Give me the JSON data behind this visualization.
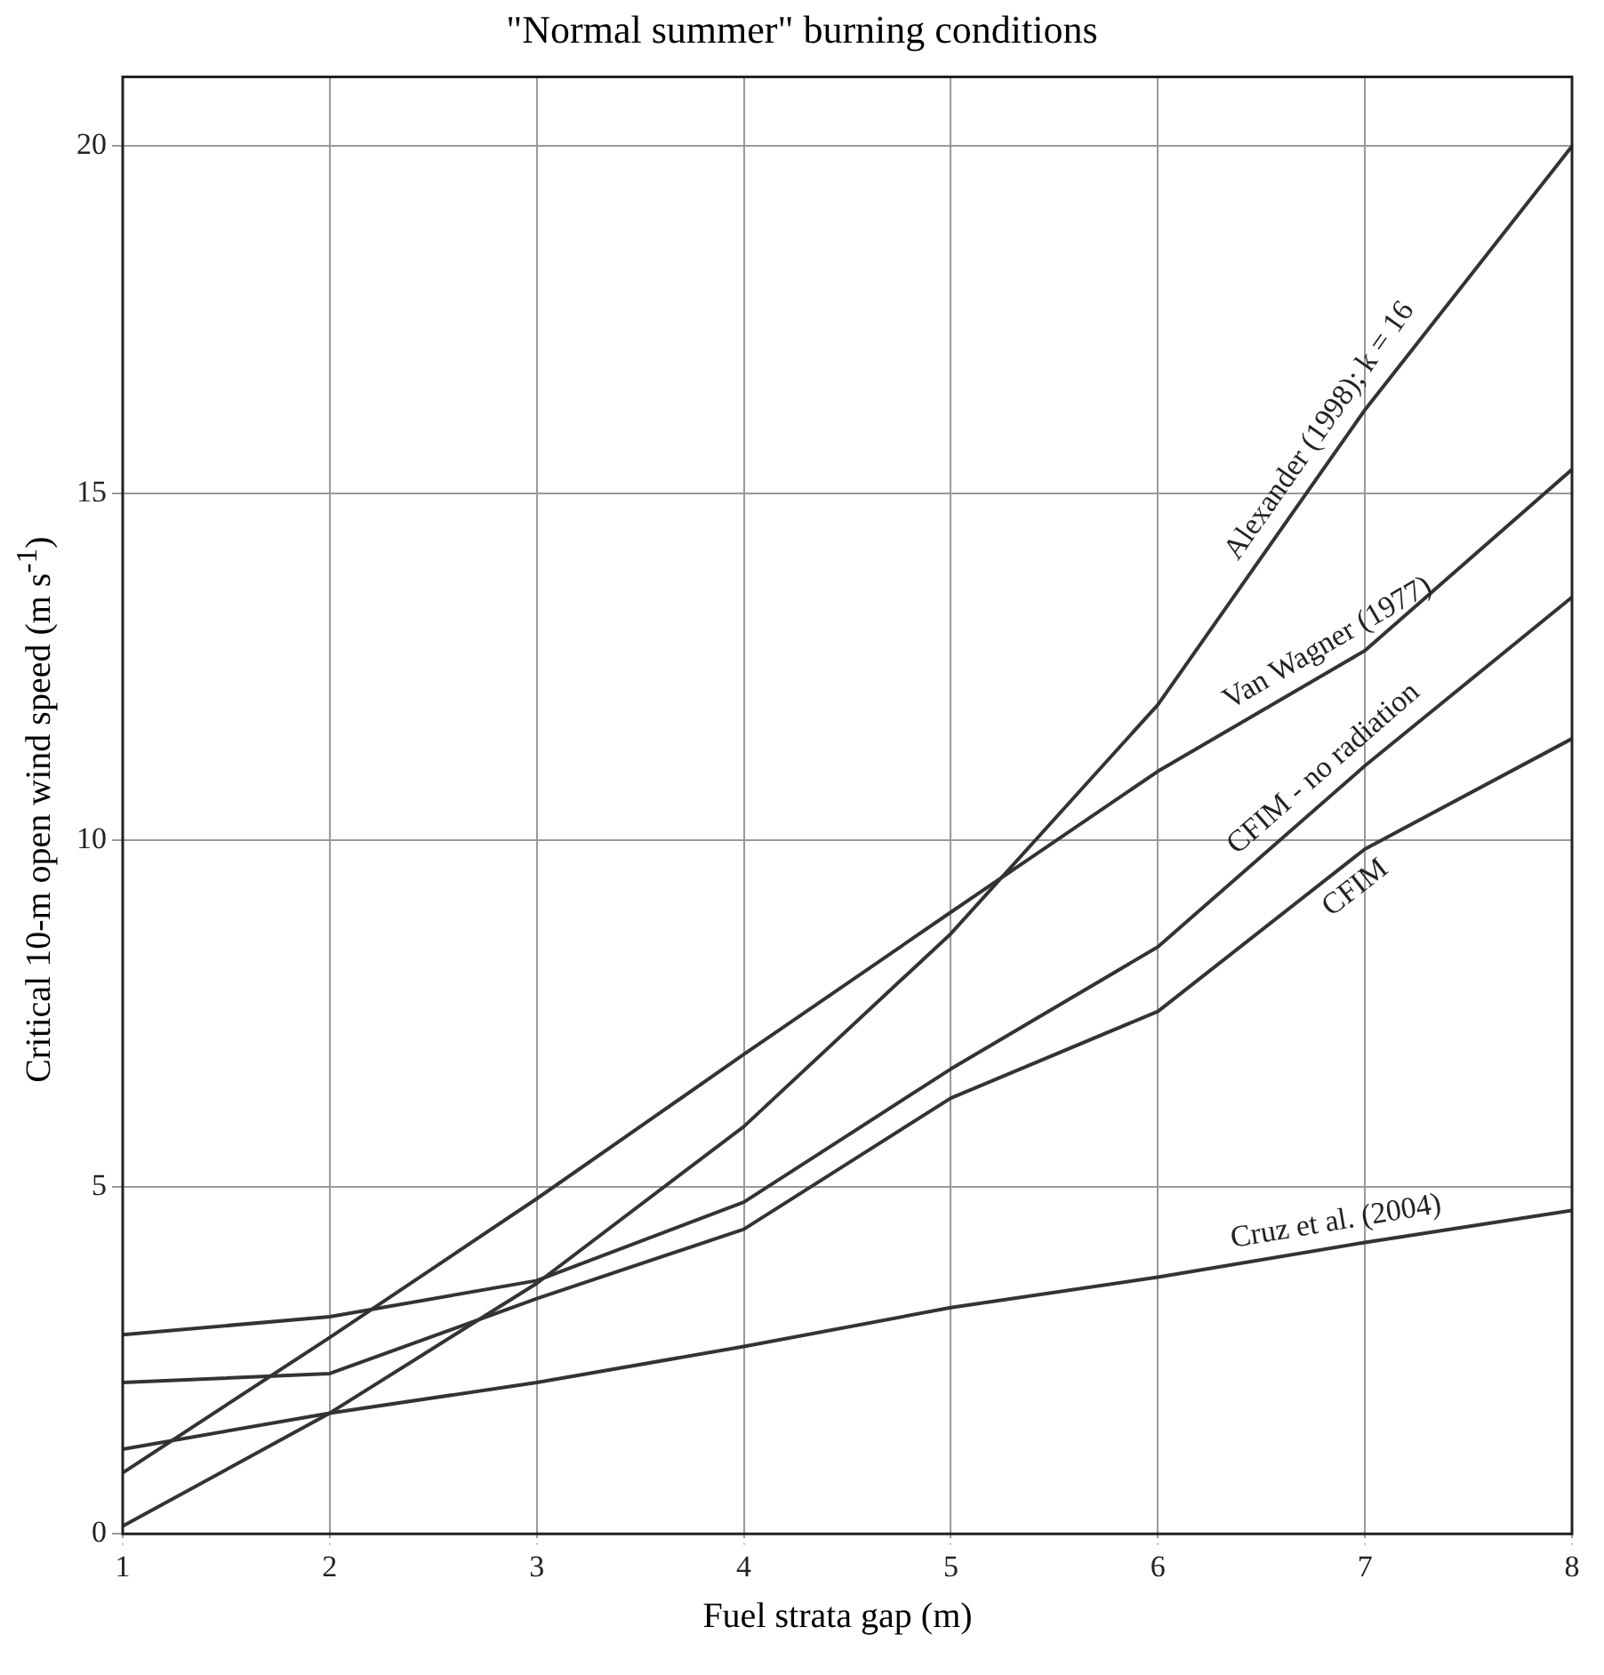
{
  "chart_data": {
    "type": "line",
    "title": "\"Normal summer\" burning conditions",
    "xlabel": "Fuel strata gap (m)",
    "ylabel": "Critical 10-m open wind speed (m s$^{-1}$)",
    "x": [
      1,
      2,
      3,
      4,
      5,
      6,
      7,
      8
    ],
    "series": [
      {
        "name": "Alexander (1998); k = 16",
        "color": "#333333",
        "values": [
          0.11,
          1.74,
          3.61,
          5.87,
          8.65,
          11.95,
          16.2,
          20.0
        ]
      },
      {
        "name": "Van Wagner (1977)",
        "color": "#333333",
        "values": [
          0.88,
          2.83,
          4.83,
          6.91,
          8.96,
          10.99,
          12.73,
          15.34
        ]
      },
      {
        "name": "CFIM",
        "color": "#333333",
        "values": [
          2.18,
          2.31,
          3.39,
          4.39,
          6.28,
          7.53,
          9.87,
          11.46
        ]
      },
      {
        "name": "CFIM - no radiation",
        "color": "#333333",
        "values": [
          2.87,
          3.13,
          3.65,
          4.78,
          6.7,
          8.46,
          11.07,
          13.5
        ]
      },
      {
        "name": "Cruz et al. (2004)",
        "color": "#333333",
        "values": [
          1.22,
          1.74,
          2.18,
          2.7,
          3.26,
          3.7,
          4.2,
          4.66
        ]
      }
    ],
    "xlim": [
      1,
      8
    ],
    "xticks": [
      1,
      2,
      3,
      4,
      5,
      6,
      7,
      8
    ],
    "ylim": [
      0,
      21
    ],
    "yticks": [
      0,
      5,
      10,
      15,
      20
    ],
    "grid": true,
    "legend": false,
    "marker": "none",
    "line_style": "solid"
  }
}
